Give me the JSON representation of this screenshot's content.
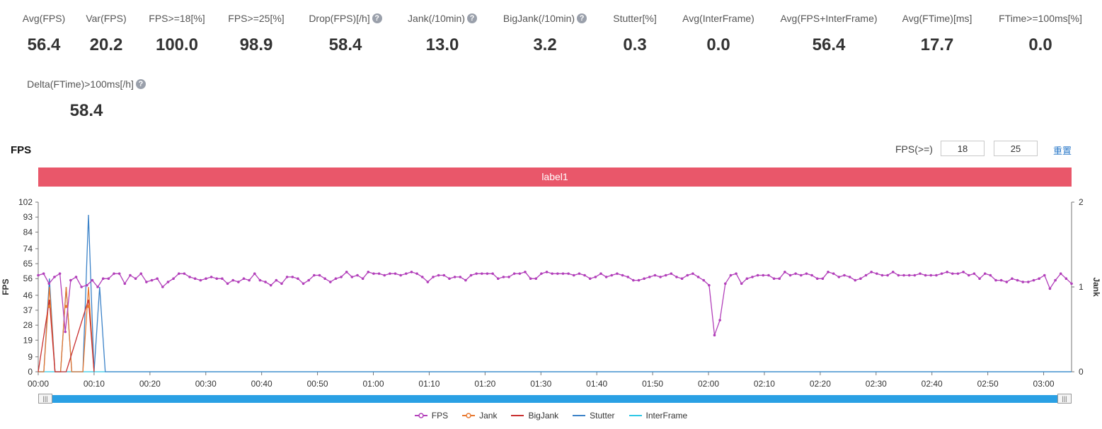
{
  "metrics": [
    {
      "label": "Avg(FPS)",
      "value": "56.4",
      "help": false
    },
    {
      "label": "Var(FPS)",
      "value": "20.2",
      "help": false
    },
    {
      "label": "FPS>=18[%]",
      "value": "100.0",
      "help": false
    },
    {
      "label": "FPS>=25[%]",
      "value": "98.9",
      "help": false
    },
    {
      "label": "Drop(FPS)[/h]",
      "value": "58.4",
      "help": true
    },
    {
      "label": "Jank(/10min)",
      "value": "13.0",
      "help": true
    },
    {
      "label": "BigJank(/10min)",
      "value": "3.2",
      "help": true
    },
    {
      "label": "Stutter[%]",
      "value": "0.3",
      "help": false
    },
    {
      "label": "Avg(InterFrame)",
      "value": "0.0",
      "help": false
    },
    {
      "label": "Avg(FPS+InterFrame)",
      "value": "56.4",
      "help": false
    },
    {
      "label": "Avg(FTime)[ms]",
      "value": "17.7",
      "help": false
    },
    {
      "label": "FTime>=100ms[%]",
      "value": "0.0",
      "help": false
    },
    {
      "label": "Delta(FTime)>100ms[/h]",
      "value": "58.4",
      "help": true
    }
  ],
  "help_glyph": "?",
  "section_title": "FPS",
  "threshold": {
    "label": "FPS(>=)",
    "low": "18",
    "high": "25",
    "reset": "重置"
  },
  "label_bar": "label1",
  "slider": {
    "grip": "|||"
  },
  "chart_data": {
    "type": "line",
    "title": "",
    "xlabel": "",
    "ylabel": "FPS",
    "y2label": "Jank",
    "ylim": [
      0,
      102
    ],
    "y2lim": [
      0,
      2
    ],
    "yticks": [
      "102",
      "93",
      "84",
      "74",
      "65",
      "56",
      "46",
      "37",
      "28",
      "19",
      "9",
      "0"
    ],
    "y2ticks": [
      "2",
      "1",
      "0"
    ],
    "xticks": [
      "00:00",
      "00:10",
      "00:20",
      "00:30",
      "00:40",
      "00:50",
      "01:00",
      "01:10",
      "01:20",
      "01:30",
      "01:40",
      "01:50",
      "02:00",
      "02:10",
      "02:20",
      "02:30",
      "02:40",
      "02:50",
      "03:00"
    ],
    "xlim_seconds": [
      0,
      185
    ],
    "colors": {
      "FPS": "#b23fba",
      "Jank": "#e8782f",
      "BigJank": "#c92f2f",
      "Stutter": "#3b82c8",
      "InterFrame": "#2ec8e6"
    },
    "legend_position": "bottom",
    "fps_series": {
      "name": "FPS",
      "values": [
        58,
        59,
        53,
        57,
        59,
        24,
        55,
        57,
        51,
        52,
        55,
        51,
        56,
        56,
        59,
        59,
        53,
        58,
        56,
        59,
        54,
        55,
        56,
        51,
        54,
        56,
        59,
        59,
        57,
        56,
        55,
        56,
        57,
        56,
        56,
        53,
        55,
        54,
        56,
        55,
        59,
        55,
        54,
        52,
        55,
        53,
        57,
        57,
        56,
        53,
        55,
        58,
        58,
        56,
        54,
        56,
        57,
        60,
        57,
        58,
        56,
        60,
        59,
        59,
        58,
        59,
        59,
        58,
        59,
        60,
        59,
        57,
        54,
        57,
        58,
        58,
        56,
        57,
        57,
        55,
        58,
        59,
        59,
        59,
        59,
        56,
        57,
        57,
        59,
        59,
        60,
        56,
        56,
        59,
        60,
        59,
        59,
        59,
        59,
        58,
        59,
        58,
        56,
        57,
        59,
        57,
        58,
        59,
        58,
        57,
        55,
        55,
        56,
        57,
        58,
        57,
        58,
        59,
        57,
        56,
        58,
        59,
        57,
        55,
        52,
        22,
        31,
        53,
        58,
        59,
        53,
        56,
        57,
        58,
        58,
        58,
        56,
        56,
        60,
        58,
        59,
        58,
        59,
        58,
        56,
        56,
        60,
        59,
        57,
        58,
        57,
        55,
        56,
        58,
        60,
        59,
        58,
        58,
        60,
        58,
        58,
        58,
        58,
        59,
        58,
        58,
        58,
        59,
        60,
        59,
        59,
        60,
        58,
        59,
        56,
        59,
        58,
        55,
        55,
        54,
        56,
        55,
        54,
        54,
        55,
        56,
        58,
        50,
        55,
        59,
        56,
        53
      ]
    },
    "jank_series": {
      "name": "Jank",
      "points": [
        [
          0,
          0
        ],
        [
          1,
          0
        ],
        [
          2,
          1
        ],
        [
          3,
          0
        ],
        [
          4,
          0
        ],
        [
          5,
          1
        ],
        [
          6,
          0
        ],
        [
          7,
          0
        ],
        [
          8,
          0
        ],
        [
          9,
          1
        ],
        [
          10,
          0
        ]
      ]
    },
    "bigjank_series": {
      "name": "BigJank",
      "points": [
        [
          0,
          0
        ],
        [
          2,
          0.85
        ],
        [
          3,
          0
        ],
        [
          5,
          0
        ],
        [
          9,
          0.85
        ],
        [
          10,
          0
        ]
      ]
    },
    "stutter_series": {
      "name": "Stutter",
      "points": [
        [
          0,
          0
        ],
        [
          1,
          0
        ],
        [
          2,
          1.1
        ],
        [
          3,
          0
        ],
        [
          4,
          0
        ],
        [
          5,
          1
        ],
        [
          6,
          0
        ],
        [
          7,
          0
        ],
        [
          8,
          0
        ],
        [
          9,
          1.85
        ],
        [
          10,
          0
        ],
        [
          11,
          1
        ],
        [
          12,
          0
        ],
        [
          185,
          0
        ]
      ]
    },
    "interframe_series": {
      "name": "InterFrame",
      "points": [
        [
          0,
          0
        ],
        [
          185,
          0
        ]
      ]
    },
    "legend": [
      "FPS",
      "Jank",
      "BigJank",
      "Stutter",
      "InterFrame"
    ]
  }
}
